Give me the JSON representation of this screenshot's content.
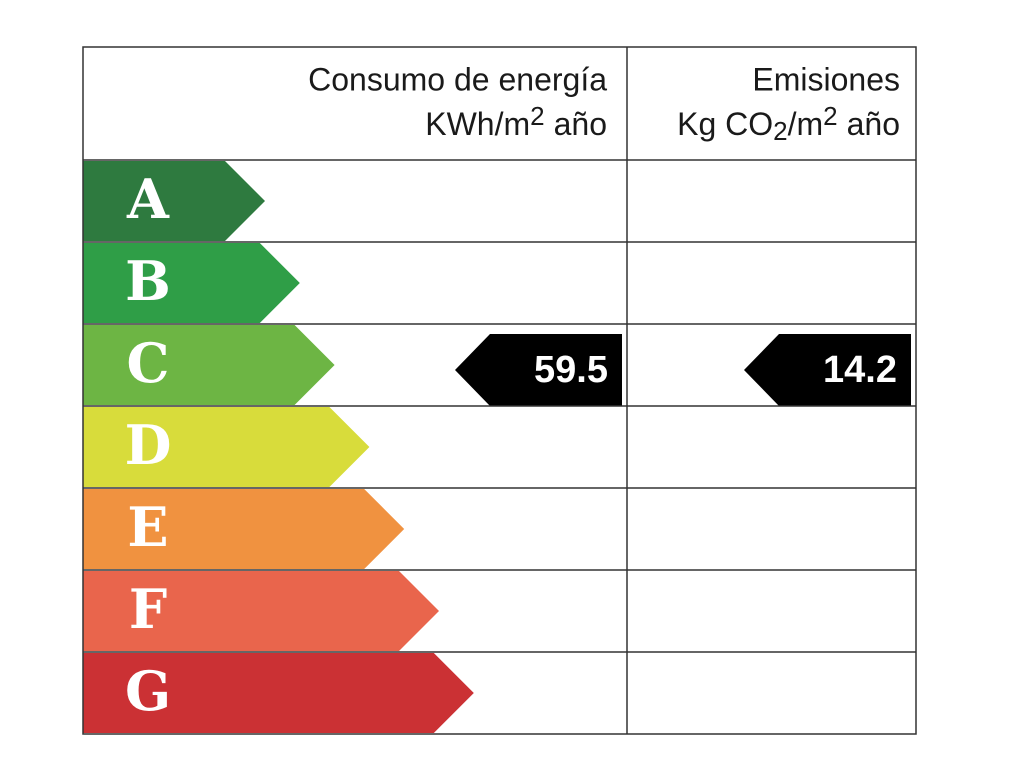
{
  "header": {
    "consumption": {
      "title": "Consumo de energía",
      "unit": [
        {
          "text": "KWh/m"
        },
        {
          "text": "2",
          "style": "sup"
        },
        {
          "text": "año",
          "space_before": true
        }
      ]
    },
    "emissions": {
      "title": "Emisiones",
      "unit": [
        {
          "text": "Kg CO"
        },
        {
          "text": "2",
          "style": "sub"
        },
        {
          "text": "/m"
        },
        {
          "text": "2",
          "style": "sup"
        },
        {
          "text": "año",
          "space_before": true
        }
      ]
    }
  },
  "grades": [
    {
      "letter": "A",
      "color": "#2e7a3f"
    },
    {
      "letter": "B",
      "color": "#2f9e47"
    },
    {
      "letter": "C",
      "color": "#6db544"
    },
    {
      "letter": "D",
      "color": "#d8dc3b"
    },
    {
      "letter": "E",
      "color": "#f09240"
    },
    {
      "letter": "F",
      "color": "#e9654c"
    },
    {
      "letter": "G",
      "color": "#cb3134"
    }
  ],
  "consumption": {
    "value": "59.5",
    "grade": "C"
  },
  "emissions": {
    "value": "14.2",
    "grade": "C"
  }
}
